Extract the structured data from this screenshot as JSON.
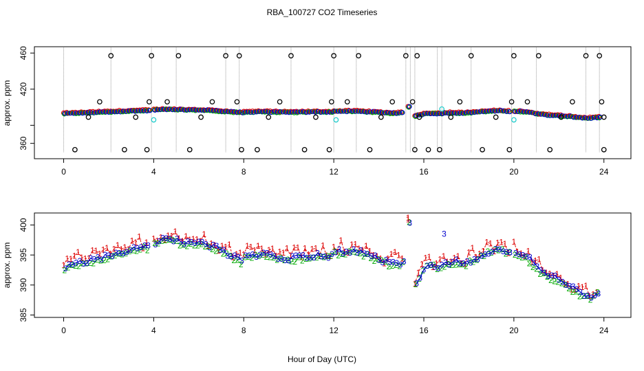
{
  "title": "RBA_100727  CO2 Timeseries",
  "xlabel": "Hour of Day (UTC)",
  "chart_data": [
    {
      "type": "scatter",
      "name": "top-panel",
      "ylabel": "approx. ppm",
      "xlim": [
        -1.3,
        25.2
      ],
      "ylim": [
        343,
        467
      ],
      "xticks": [
        0,
        4,
        8,
        12,
        16,
        20,
        24
      ],
      "yticks": [
        360,
        380,
        420,
        460
      ],
      "ytick_labels": [
        "360",
        "",
        "420",
        "460"
      ],
      "grey_spikes_x": [
        0.0,
        2.1,
        3.9,
        5.0,
        7.2,
        7.8,
        10.1,
        12.0,
        13.0,
        15.2,
        15.4,
        15.6,
        16.6,
        16.8,
        18.1,
        19.9,
        21.0,
        23.2,
        23.8
      ],
      "black_circles": [
        {
          "x": 0.5,
          "y": 353
        },
        {
          "x": 1.1,
          "y": 389
        },
        {
          "x": 1.6,
          "y": 406
        },
        {
          "x": 2.1,
          "y": 457
        },
        {
          "x": 2.7,
          "y": 353
        },
        {
          "x": 3.2,
          "y": 389
        },
        {
          "x": 3.7,
          "y": 353
        },
        {
          "x": 3.8,
          "y": 406
        },
        {
          "x": 3.9,
          "y": 457
        },
        {
          "x": 4.6,
          "y": 406
        },
        {
          "x": 5.1,
          "y": 457
        },
        {
          "x": 5.6,
          "y": 353
        },
        {
          "x": 6.1,
          "y": 389
        },
        {
          "x": 6.6,
          "y": 406
        },
        {
          "x": 7.2,
          "y": 457
        },
        {
          "x": 7.7,
          "y": 406
        },
        {
          "x": 7.8,
          "y": 457
        },
        {
          "x": 7.9,
          "y": 353
        },
        {
          "x": 8.6,
          "y": 353
        },
        {
          "x": 9.1,
          "y": 389
        },
        {
          "x": 9.6,
          "y": 406
        },
        {
          "x": 10.1,
          "y": 457
        },
        {
          "x": 10.7,
          "y": 353
        },
        {
          "x": 11.2,
          "y": 389
        },
        {
          "x": 11.8,
          "y": 353
        },
        {
          "x": 11.9,
          "y": 406
        },
        {
          "x": 12.0,
          "y": 457
        },
        {
          "x": 12.6,
          "y": 406
        },
        {
          "x": 13.1,
          "y": 457
        },
        {
          "x": 13.6,
          "y": 353
        },
        {
          "x": 14.1,
          "y": 389
        },
        {
          "x": 14.6,
          "y": 406
        },
        {
          "x": 15.2,
          "y": 457
        },
        {
          "x": 15.5,
          "y": 406
        },
        {
          "x": 15.6,
          "y": 353
        },
        {
          "x": 15.7,
          "y": 457
        },
        {
          "x": 15.8,
          "y": 389
        },
        {
          "x": 16.2,
          "y": 353
        },
        {
          "x": 16.7,
          "y": 353
        },
        {
          "x": 17.2,
          "y": 389
        },
        {
          "x": 17.6,
          "y": 406
        },
        {
          "x": 18.1,
          "y": 457
        },
        {
          "x": 18.6,
          "y": 353
        },
        {
          "x": 19.2,
          "y": 389
        },
        {
          "x": 19.8,
          "y": 353
        },
        {
          "x": 19.9,
          "y": 406
        },
        {
          "x": 20.0,
          "y": 457
        },
        {
          "x": 20.6,
          "y": 406
        },
        {
          "x": 21.1,
          "y": 457
        },
        {
          "x": 21.6,
          "y": 353
        },
        {
          "x": 22.1,
          "y": 389
        },
        {
          "x": 22.6,
          "y": 406
        },
        {
          "x": 23.2,
          "y": 457
        },
        {
          "x": 23.8,
          "y": 457
        },
        {
          "x": 23.9,
          "y": 406
        },
        {
          "x": 24.0,
          "y": 389
        },
        {
          "x": 24.0,
          "y": 353
        }
      ],
      "cyan_circles": [
        {
          "x": 4.0,
          "y": 386
        },
        {
          "x": 12.1,
          "y": 386
        },
        {
          "x": 16.8,
          "y": 398
        },
        {
          "x": 20.0,
          "y": 386
        }
      ]
    },
    {
      "type": "scatter",
      "name": "bottom-panel",
      "ylabel": "approx. ppm",
      "xlim": [
        -1.3,
        25.2
      ],
      "ylim": [
        384.6,
        402
      ],
      "xticks": [
        0,
        4,
        8,
        12,
        16,
        20,
        24
      ],
      "yticks": [
        385,
        390,
        395,
        400
      ],
      "series": [
        {
          "name": "1",
          "color": "#dd0000"
        },
        {
          "name": "2",
          "color": "#00aa00"
        },
        {
          "name": "3",
          "color": "#0000cc"
        }
      ],
      "segments": [
        {
          "start": 0.0,
          "end": 3.8,
          "values": [
            393.0,
            393.8,
            394.5,
            395.2,
            396.0,
            396.5
          ]
        },
        {
          "start": 4.0,
          "end": 7.9,
          "values": [
            397.0,
            397.8,
            397.2,
            397.0,
            396.8,
            396.0,
            395.0,
            394.0
          ]
        },
        {
          "start": 8.0,
          "end": 11.9,
          "values": [
            394.5,
            395.2,
            394.8,
            394.4,
            394.7,
            395.0,
            394.8
          ]
        },
        {
          "start": 12.0,
          "end": 15.1,
          "values": [
            395.5,
            395.6,
            395.5,
            395.0,
            394.0,
            393.5,
            393.8
          ]
        },
        {
          "start": 15.3,
          "end": 15.4,
          "values": [
            400.5
          ]
        },
        {
          "start": 15.6,
          "end": 19.8,
          "values": [
            390.5,
            393.5,
            393.0,
            394.0,
            393.5,
            394.5,
            395.5,
            396.0,
            395.5
          ]
        },
        {
          "start": 20.0,
          "end": 23.8,
          "values": [
            395.5,
            395.0,
            393.0,
            391.5,
            391.0,
            390.0,
            388.5,
            388.0,
            389.0
          ]
        }
      ],
      "spikes": [
        {
          "x": 16.9,
          "y": 398.5,
          "series": "3"
        },
        {
          "x": 15.3,
          "y": 401.2,
          "series": "1"
        }
      ]
    }
  ]
}
